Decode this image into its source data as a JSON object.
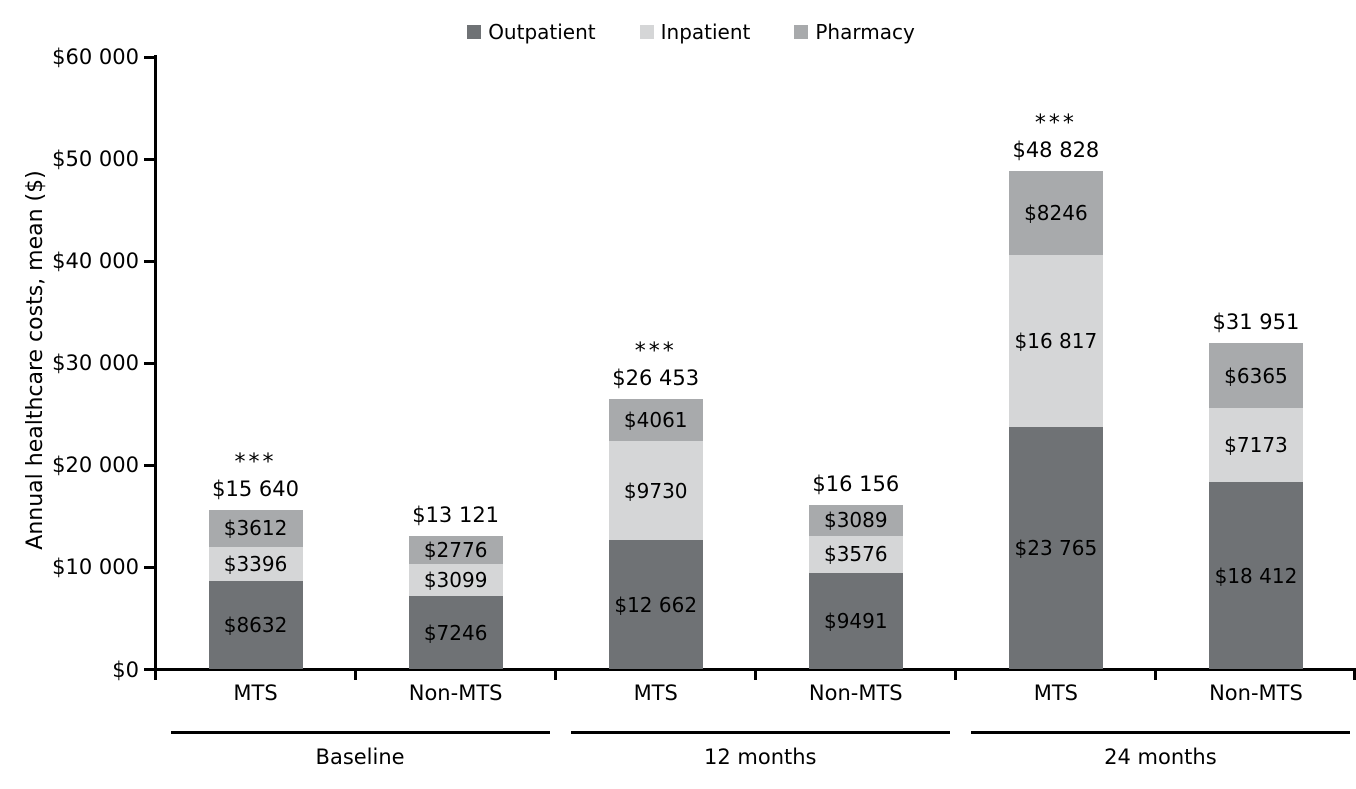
{
  "chart_data": {
    "type": "stacked-bar",
    "ylabel": "Annual healthcare costs, mean ($)",
    "ylim": [
      0,
      60000
    ],
    "ytick_step": 10000,
    "ytick_labels": [
      "$0",
      "$10 000",
      "$20 000",
      "$30 000",
      "$40 000",
      "$50 000",
      "$60 000"
    ],
    "grid": "off",
    "legend_position": "top-center",
    "series": [
      {
        "name": "Outpatient",
        "color": "#6f7275"
      },
      {
        "name": "Inpatient",
        "color": "#d5d6d7"
      },
      {
        "name": "Pharmacy",
        "color": "#a8aaac"
      }
    ],
    "groups": [
      {
        "label": "Baseline",
        "bars": [
          {
            "label": "MTS",
            "significance": "***",
            "total": 15640,
            "total_label": "$15 640",
            "segments": [
              {
                "series": "Outpatient",
                "value": 8632,
                "label": "$8632"
              },
              {
                "series": "Inpatient",
                "value": 3396,
                "label": "$3396"
              },
              {
                "series": "Pharmacy",
                "value": 3612,
                "label": "$3612"
              }
            ]
          },
          {
            "label": "Non-MTS",
            "significance": "",
            "total": 13121,
            "total_label": "$13 121",
            "segments": [
              {
                "series": "Outpatient",
                "value": 7246,
                "label": "$7246"
              },
              {
                "series": "Inpatient",
                "value": 3099,
                "label": "$3099"
              },
              {
                "series": "Pharmacy",
                "value": 2776,
                "label": "$2776"
              }
            ]
          }
        ]
      },
      {
        "label": "12 months",
        "bars": [
          {
            "label": "MTS",
            "significance": "***",
            "total": 26453,
            "total_label": "$26 453",
            "segments": [
              {
                "series": "Outpatient",
                "value": 12662,
                "label": "$12 662"
              },
              {
                "series": "Inpatient",
                "value": 9730,
                "label": "$9730"
              },
              {
                "series": "Pharmacy",
                "value": 4061,
                "label": "$4061"
              }
            ]
          },
          {
            "label": "Non-MTS",
            "significance": "",
            "total": 16156,
            "total_label": "$16 156",
            "segments": [
              {
                "series": "Outpatient",
                "value": 9491,
                "label": "$9491"
              },
              {
                "series": "Inpatient",
                "value": 3576,
                "label": "$3576"
              },
              {
                "series": "Pharmacy",
                "value": 3089,
                "label": "$3089"
              }
            ]
          }
        ]
      },
      {
        "label": "24 months",
        "bars": [
          {
            "label": "MTS",
            "significance": "***",
            "total": 48828,
            "total_label": "$48 828",
            "segments": [
              {
                "series": "Outpatient",
                "value": 23765,
                "label": "$23 765"
              },
              {
                "series": "Inpatient",
                "value": 16817,
                "label": "$16 817"
              },
              {
                "series": "Pharmacy",
                "value": 8246,
                "label": "$8246"
              }
            ]
          },
          {
            "label": "Non-MTS",
            "significance": "",
            "total": 31951,
            "total_label": "$31 951",
            "segments": [
              {
                "series": "Outpatient",
                "value": 18412,
                "label": "$18 412"
              },
              {
                "series": "Inpatient",
                "value": 7173,
                "label": "$7173"
              },
              {
                "series": "Pharmacy",
                "value": 6365,
                "label": "$6365"
              }
            ]
          }
        ]
      }
    ]
  }
}
